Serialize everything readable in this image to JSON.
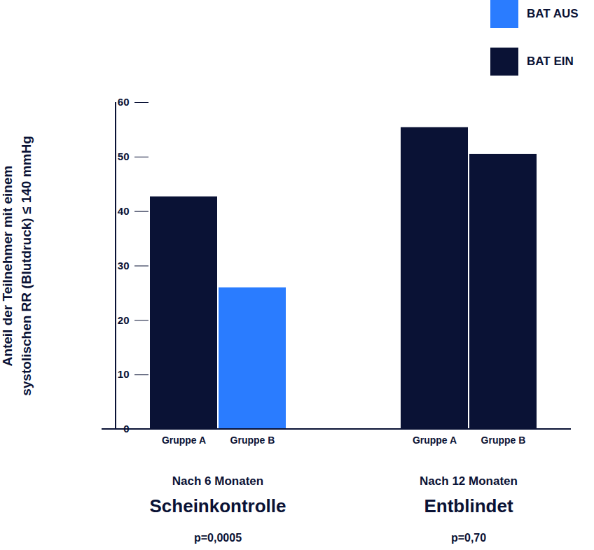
{
  "chart_data": {
    "type": "bar",
    "y_label": [
      "Anteil der Teilnehmer mit einem",
      "systolischen RR (Blutdruck) ≤ 140 mmHg"
    ],
    "groups": [
      {
        "label": "Nach 6 Monaten",
        "subtitle": "Scheinkontrolle",
        "p_value": "p=0,0005",
        "categories": [
          "Gruppe A",
          "Gruppe B"
        ]
      },
      {
        "label": "Nach 12 Monaten",
        "subtitle": "Entblindet",
        "p_value": "p=0,70",
        "categories": [
          "Gruppe A",
          "Gruppe B"
        ]
      }
    ],
    "series": [
      {
        "name": "BAT AUS",
        "color": "#2a7cff",
        "values": [
          null,
          26,
          null,
          null
        ]
      },
      {
        "name": "BAT EIN",
        "color": "#0a1235",
        "values": [
          42.7,
          null,
          55.4,
          50.5
        ]
      }
    ],
    "ylim": [
      0,
      60
    ],
    "yticks": [
      0,
      10,
      20,
      30,
      40,
      50,
      60
    ],
    "legend": "top-right"
  }
}
